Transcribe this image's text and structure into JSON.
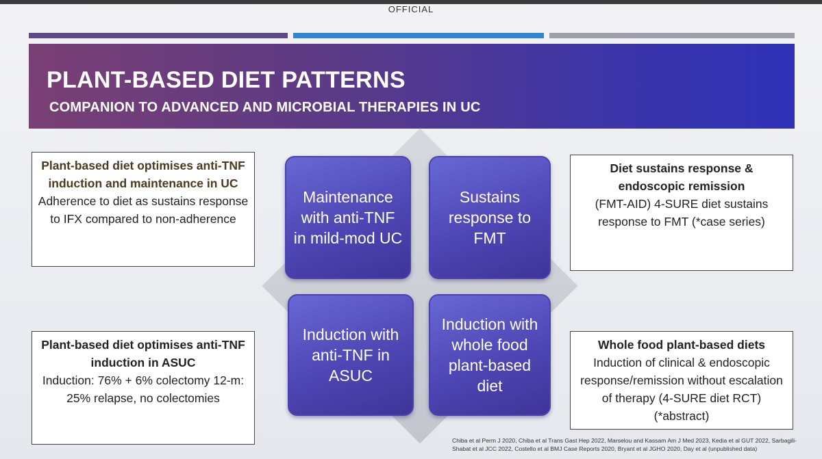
{
  "header": {
    "classification": "OFFICIAL",
    "title": "PLANT-BASED DIET PATTERNS",
    "subtitle": "COMPANION TO ADVANCED AND MICROBIAL THERAPIES IN UC"
  },
  "center_tiles": [
    {
      "label": "Maintenance with anti-TNF in mild-mod UC"
    },
    {
      "label": "Sustains response to FMT"
    },
    {
      "label": "Induction with anti-TNF in ASUC"
    },
    {
      "label": "Induction with whole food plant-based diet"
    }
  ],
  "boxes": {
    "top_left": {
      "head": "Plant-based diet optimises anti-TNF induction and maintenance in UC",
      "body": "Adherence to diet as sustains response to IFX compared to non-adherence"
    },
    "top_right": {
      "head": "Diet sustains response & endoscopic remission",
      "body": "(FMT-AID) 4-SURE diet sustains response to FMT (*case series)"
    },
    "bottom_left": {
      "head": "Plant-based diet optimises anti-TNF induction in ASUC",
      "body": "Induction: 76% + 6% colectomy 12-m: 25% relapse, no colectomies"
    },
    "bottom_right": {
      "head": "Whole food plant-based diets",
      "body": "Induction of clinical & endoscopic response/remission without escalation of therapy (4-SURE diet RCT) (*abstract)"
    }
  },
  "references": "Chiba et al Perm J 2020, Chiba et al Trans Gast Hep 2022, Marselou and Kassam Am J Med 2023, Kedia et al GUT 2022, Sarbagili-Shabat et al JCC 2022, Costello et al BMJ Case Reports 2020, Bryant et al JGHO 2020, Day et al (unpublished data)",
  "colors": {
    "banner_start": "#7a3f74",
    "banner_end": "#2f32b8",
    "tile": "#4e46b4",
    "bar_purple": "#5d4a86",
    "bar_blue": "#2f87d4",
    "bar_grey": "#9c9fa7"
  }
}
